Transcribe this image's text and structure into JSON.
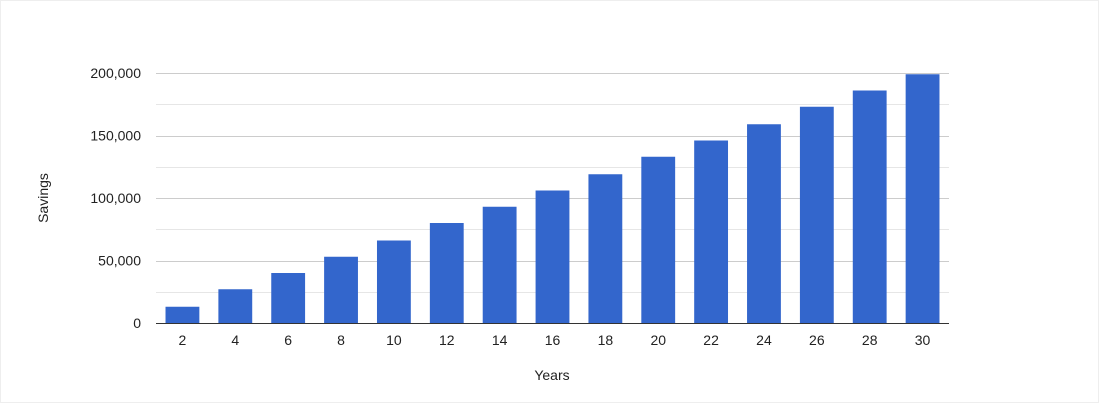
{
  "chart_data": {
    "type": "bar",
    "title": "",
    "xlabel": "Years",
    "ylabel": "Savings",
    "categories": [
      "2",
      "4",
      "6",
      "8",
      "10",
      "12",
      "14",
      "16",
      "18",
      "20",
      "22",
      "24",
      "26",
      "28",
      "30"
    ],
    "values": [
      13000,
      27000,
      40000,
      53000,
      66000,
      80000,
      93000,
      106000,
      119000,
      133000,
      146000,
      159000,
      173000,
      186000,
      199000
    ],
    "ylim": [
      0,
      200000
    ],
    "yticks": [
      0,
      50000,
      100000,
      150000,
      200000
    ],
    "ytick_labels": [
      "0",
      "50,000",
      "100,000",
      "150,000",
      "200,000"
    ],
    "minor_gridlines": true,
    "grid": true,
    "legend": "none",
    "bar_color": "#3366cc",
    "grid_color": "#cccccc",
    "axis_color": "#333333"
  }
}
